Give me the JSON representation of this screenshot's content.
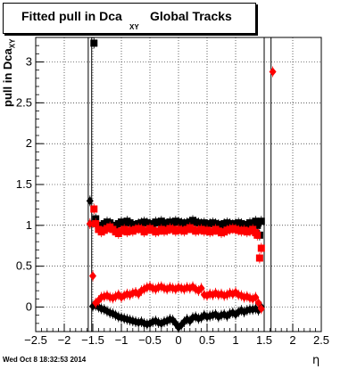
{
  "chart_data": {
    "type": "scatter",
    "title": "Fitted pull in Dca",
    "title_subscript": "XY",
    "title_suffix": "Global Tracks",
    "ylabel": "pull in Dca",
    "ylabel_subscript": "XY",
    "xlabel": "η",
    "xlim": [
      -2.5,
      2.5
    ],
    "ylim": [
      -0.3,
      3.3
    ],
    "grid": true,
    "x_ticks": [
      -2.5,
      -2,
      -1.5,
      -1,
      -0.5,
      0,
      0.5,
      1,
      1.5,
      2,
      2.5
    ],
    "x_tick_labels": [
      "−2.5",
      "−2",
      "−1.5",
      "−1",
      "−0.5",
      "0",
      "0.5",
      "1",
      "1.5",
      "2",
      "2.5"
    ],
    "y_ticks": [
      0,
      0.5,
      1,
      1.5,
      2,
      2.5,
      3
    ],
    "y_tick_labels": [
      "0",
      "0.5",
      "1",
      "1.5",
      "2",
      "2.5",
      "3"
    ],
    "vertical_lines_x": [
      -1.58,
      -1.52,
      1.5,
      1.62
    ],
    "series": [
      {
        "marker": "square",
        "color": "#000000",
        "x": [
          -1.48,
          -1.45,
          -1.4,
          -1.35,
          -1.3,
          -1.25,
          -1.2,
          -1.15,
          -1.1,
          -1.05,
          -1.0,
          -0.95,
          -0.9,
          -0.85,
          -0.8,
          -0.75,
          -0.7,
          -0.65,
          -0.6,
          -0.55,
          -0.5,
          -0.45,
          -0.4,
          -0.35,
          -0.3,
          -0.25,
          -0.2,
          -0.15,
          -0.1,
          -0.05,
          0.0,
          0.05,
          0.1,
          0.15,
          0.2,
          0.25,
          0.3,
          0.35,
          0.4,
          0.45,
          0.5,
          0.55,
          0.6,
          0.65,
          0.7,
          0.75,
          0.8,
          0.85,
          0.9,
          0.95,
          1.0,
          1.05,
          1.1,
          1.15,
          1.2,
          1.25,
          1.3,
          1.35,
          1.38,
          1.42,
          1.45
        ],
        "y": [
          3.23,
          1.08,
          1.0,
          0.98,
          1.02,
          1.04,
          1.03,
          1.0,
          0.99,
          1.02,
          1.04,
          1.03,
          1.05,
          1.03,
          1.01,
          1.0,
          1.02,
          1.03,
          1.04,
          1.03,
          1.02,
          1.01,
          1.04,
          1.03,
          1.05,
          1.03,
          1.02,
          1.04,
          1.03,
          1.05,
          1.04,
          1.03,
          1.02,
          1.03,
          1.04,
          1.06,
          1.04,
          1.03,
          1.02,
          1.03,
          1.01,
          1.02,
          1.03,
          1.02,
          1.01,
          1.0,
          1.02,
          1.03,
          1.02,
          1.01,
          1.02,
          1.03,
          1.02,
          1.0,
          1.01,
          1.03,
          1.02,
          1.05,
          1.0,
          0.88,
          1.05
        ]
      },
      {
        "marker": "square",
        "color": "#ff0000",
        "x": [
          -1.48,
          -1.45,
          -1.4,
          -1.35,
          -1.3,
          -1.25,
          -1.2,
          -1.15,
          -1.1,
          -1.05,
          -1.0,
          -0.95,
          -0.9,
          -0.85,
          -0.8,
          -0.75,
          -0.7,
          -0.65,
          -0.6,
          -0.55,
          -0.5,
          -0.45,
          -0.4,
          -0.35,
          -0.3,
          -0.25,
          -0.2,
          -0.15,
          -0.1,
          -0.05,
          0.0,
          0.05,
          0.1,
          0.15,
          0.2,
          0.25,
          0.3,
          0.35,
          0.4,
          0.45,
          0.5,
          0.55,
          0.6,
          0.65,
          0.7,
          0.75,
          0.8,
          0.85,
          0.9,
          0.95,
          1.0,
          1.05,
          1.1,
          1.15,
          1.2,
          1.25,
          1.3,
          1.35,
          1.38,
          1.42,
          1.45
        ],
        "y": [
          1.2,
          1.02,
          0.95,
          0.92,
          0.94,
          0.96,
          0.98,
          0.95,
          0.92,
          0.9,
          0.93,
          0.95,
          0.92,
          0.94,
          0.93,
          0.95,
          0.96,
          0.95,
          0.92,
          0.94,
          0.96,
          0.94,
          0.92,
          0.93,
          0.95,
          0.93,
          0.94,
          0.96,
          0.95,
          0.93,
          0.95,
          0.94,
          0.93,
          0.95,
          0.97,
          0.95,
          0.93,
          0.94,
          0.95,
          0.93,
          0.94,
          0.92,
          0.93,
          0.95,
          0.93,
          0.91,
          0.92,
          0.94,
          0.95,
          0.96,
          0.95,
          0.94,
          0.93,
          0.94,
          0.92,
          0.93,
          0.95,
          0.91,
          0.88,
          0.6,
          0.72
        ]
      },
      {
        "marker": "diamond",
        "color": "#000000",
        "x": [
          -1.55,
          -1.5,
          -1.45,
          -1.4,
          -1.35,
          -1.3,
          -1.25,
          -1.2,
          -1.15,
          -1.1,
          -1.05,
          -1.0,
          -0.95,
          -0.9,
          -0.85,
          -0.8,
          -0.75,
          -0.7,
          -0.65,
          -0.6,
          -0.55,
          -0.5,
          -0.45,
          -0.4,
          -0.35,
          -0.3,
          -0.25,
          -0.2,
          -0.15,
          -0.1,
          -0.05,
          0.0,
          0.05,
          0.1,
          0.15,
          0.2,
          0.25,
          0.3,
          0.35,
          0.4,
          0.45,
          0.5,
          0.55,
          0.6,
          0.65,
          0.7,
          0.75,
          0.8,
          0.85,
          0.9,
          0.95,
          1.0,
          1.05,
          1.1,
          1.15,
          1.2,
          1.25,
          1.3,
          1.35,
          1.4,
          1.45
        ],
        "y": [
          1.3,
          0.01,
          0.02,
          0.0,
          -0.02,
          -0.03,
          -0.05,
          -0.07,
          -0.08,
          -0.1,
          -0.12,
          -0.13,
          -0.14,
          -0.15,
          -0.16,
          -0.17,
          -0.18,
          -0.19,
          -0.18,
          -0.2,
          -0.21,
          -0.2,
          -0.18,
          -0.17,
          -0.19,
          -0.2,
          -0.18,
          -0.17,
          -0.15,
          -0.16,
          -0.2,
          -0.25,
          -0.22,
          -0.18,
          -0.15,
          -0.17,
          -0.13,
          -0.12,
          -0.14,
          -0.13,
          -0.1,
          -0.12,
          -0.11,
          -0.1,
          -0.09,
          -0.12,
          -0.1,
          -0.09,
          -0.11,
          -0.08,
          -0.07,
          -0.09,
          -0.06,
          -0.04,
          -0.06,
          -0.04,
          -0.03,
          -0.03,
          -0.02,
          -0.04,
          0.0
        ]
      },
      {
        "marker": "diamond",
        "color": "#ff0000",
        "x": [
          -1.55,
          -1.5,
          -1.45,
          -1.4,
          -1.35,
          -1.3,
          -1.25,
          -1.2,
          -1.15,
          -1.1,
          -1.05,
          -1.0,
          -0.95,
          -0.9,
          -0.85,
          -0.8,
          -0.75,
          -0.7,
          -0.65,
          -0.6,
          -0.55,
          -0.5,
          -0.45,
          -0.4,
          -0.35,
          -0.3,
          -0.25,
          -0.2,
          -0.15,
          -0.1,
          -0.05,
          0.0,
          0.05,
          0.1,
          0.15,
          0.2,
          0.25,
          0.3,
          0.35,
          0.4,
          0.45,
          0.5,
          0.55,
          0.6,
          0.65,
          0.7,
          0.75,
          0.8,
          0.85,
          0.9,
          0.95,
          1.0,
          1.05,
          1.1,
          1.15,
          1.2,
          1.25,
          1.3,
          1.35,
          1.4,
          1.45,
          1.65
        ],
        "y": [
          1.02,
          0.38,
          0.05,
          0.08,
          0.12,
          0.13,
          0.14,
          0.12,
          0.11,
          0.13,
          0.15,
          0.12,
          0.14,
          0.16,
          0.15,
          0.17,
          0.18,
          0.16,
          0.2,
          0.22,
          0.24,
          0.25,
          0.23,
          0.22,
          0.24,
          0.25,
          0.23,
          0.22,
          0.24,
          0.23,
          0.22,
          0.24,
          0.23,
          0.22,
          0.24,
          0.23,
          0.25,
          0.22,
          0.2,
          0.23,
          0.15,
          0.14,
          0.16,
          0.15,
          0.17,
          0.15,
          0.16,
          0.14,
          0.15,
          0.17,
          0.16,
          0.18,
          0.15,
          0.14,
          0.12,
          0.13,
          0.11,
          0.1,
          0.12,
          0.05,
          -0.02,
          2.88
        ]
      }
    ]
  },
  "footer_timestamp": "Wed Oct  8 18:32:53 2014"
}
